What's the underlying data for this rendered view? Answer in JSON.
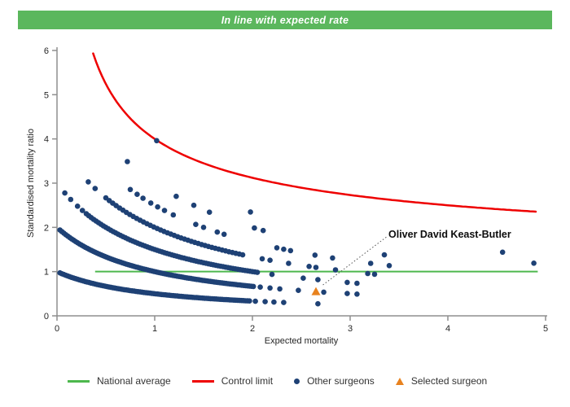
{
  "banner": {
    "text": "In line with expected rate",
    "background": "#5bb75d"
  },
  "chart_data": {
    "type": "scatter",
    "subtype": "funnel-plot-surgeon-outcomes",
    "x_axis": {
      "title": "Expected mortality",
      "min": 0,
      "max": 5,
      "ticks": [
        0,
        1,
        2,
        3,
        4,
        5
      ],
      "grid": false
    },
    "y_axis": {
      "title": "Standardised mortality ratio",
      "min": 0,
      "max": 6,
      "ticks": [
        0,
        1,
        2,
        3,
        4,
        5,
        6
      ],
      "grid": false
    },
    "national_average": {
      "label": "National average",
      "value": 1.0,
      "x_start": 0.39,
      "x_end": 4.92,
      "color": "#4db84d"
    },
    "control_limit": {
      "label": "Control limit",
      "formula": "1 + 3 / sqrt(expected)",
      "base": 1,
      "k": 3,
      "x_start": 0.37,
      "x_end": 4.92,
      "color": "#ee0000"
    },
    "other_surgeons": {
      "label": "Other surgeons",
      "color": "#1e4175",
      "marker": "circle",
      "marker_radius": 3.3,
      "smr_model": "smr = (observed_deaths + 1) / (expected + 1)",
      "bands": [
        {
          "observed_deaths": 0,
          "runs": [
            [
              0.03,
              1.97,
              0.02
            ]
          ],
          "points": [
            2.03,
            2.13,
            2.22,
            2.32,
            2.67
          ]
        },
        {
          "observed_deaths": 1,
          "runs": [
            [
              0.03,
              2.01,
              0.02
            ]
          ],
          "points": [
            2.08,
            2.18,
            2.28,
            2.47,
            2.73,
            2.97,
            3.07
          ]
        },
        {
          "observed_deaths": 2,
          "runs": [
            [
              0.3,
              2.06,
              0.025
            ]
          ],
          "points": [
            0.08,
            0.14,
            0.21,
            0.26,
            2.2,
            2.52,
            2.67,
            2.97,
            3.07
          ]
        },
        {
          "observed_deaths": 3,
          "runs": [
            [
              0.5,
              1.93,
              0.035
            ]
          ],
          "points": [
            0.32,
            0.39,
            2.1,
            2.18,
            2.37,
            2.58,
            2.65,
            2.85,
            3.18,
            3.25
          ]
        },
        {
          "observed_deaths": 4,
          "runs": [],
          "points": [
            0.75,
            0.82,
            0.88,
            0.96,
            1.03,
            1.1,
            1.19,
            1.42,
            1.5,
            1.64,
            1.71,
            2.25,
            2.32,
            2.39,
            2.64,
            2.82,
            3.21,
            3.4
          ]
        },
        {
          "observed_deaths": 5,
          "runs": [],
          "points": [
            0.72,
            1.22,
            1.4,
            1.56,
            2.02,
            2.11,
            3.35
          ]
        },
        {
          "observed_deaths": 6,
          "runs": [],
          "points": [
            1.98,
            4.88
          ]
        },
        {
          "observed_deaths": 7,
          "runs": [],
          "points": [
            1.02,
            4.56
          ]
        }
      ]
    },
    "selected_surgeon": {
      "label": "Selected surgeon",
      "name": "Oliver David Keast-Butler",
      "expected": 2.65,
      "smr": 0.55,
      "color": "#e8821e",
      "marker": "triangle"
    },
    "annotation": {
      "label": "Oliver David Keast-Butler",
      "line_from": [
        3.37,
        1.78
      ],
      "line_to": [
        2.71,
        0.68
      ]
    }
  },
  "legend": {
    "items": [
      {
        "label": "National average",
        "marker": "green-line"
      },
      {
        "label": "Control limit",
        "marker": "red-line"
      },
      {
        "label": "Other surgeons",
        "marker": "navy-dot"
      },
      {
        "label": "Selected surgeon",
        "marker": "orange-triangle"
      }
    ]
  }
}
